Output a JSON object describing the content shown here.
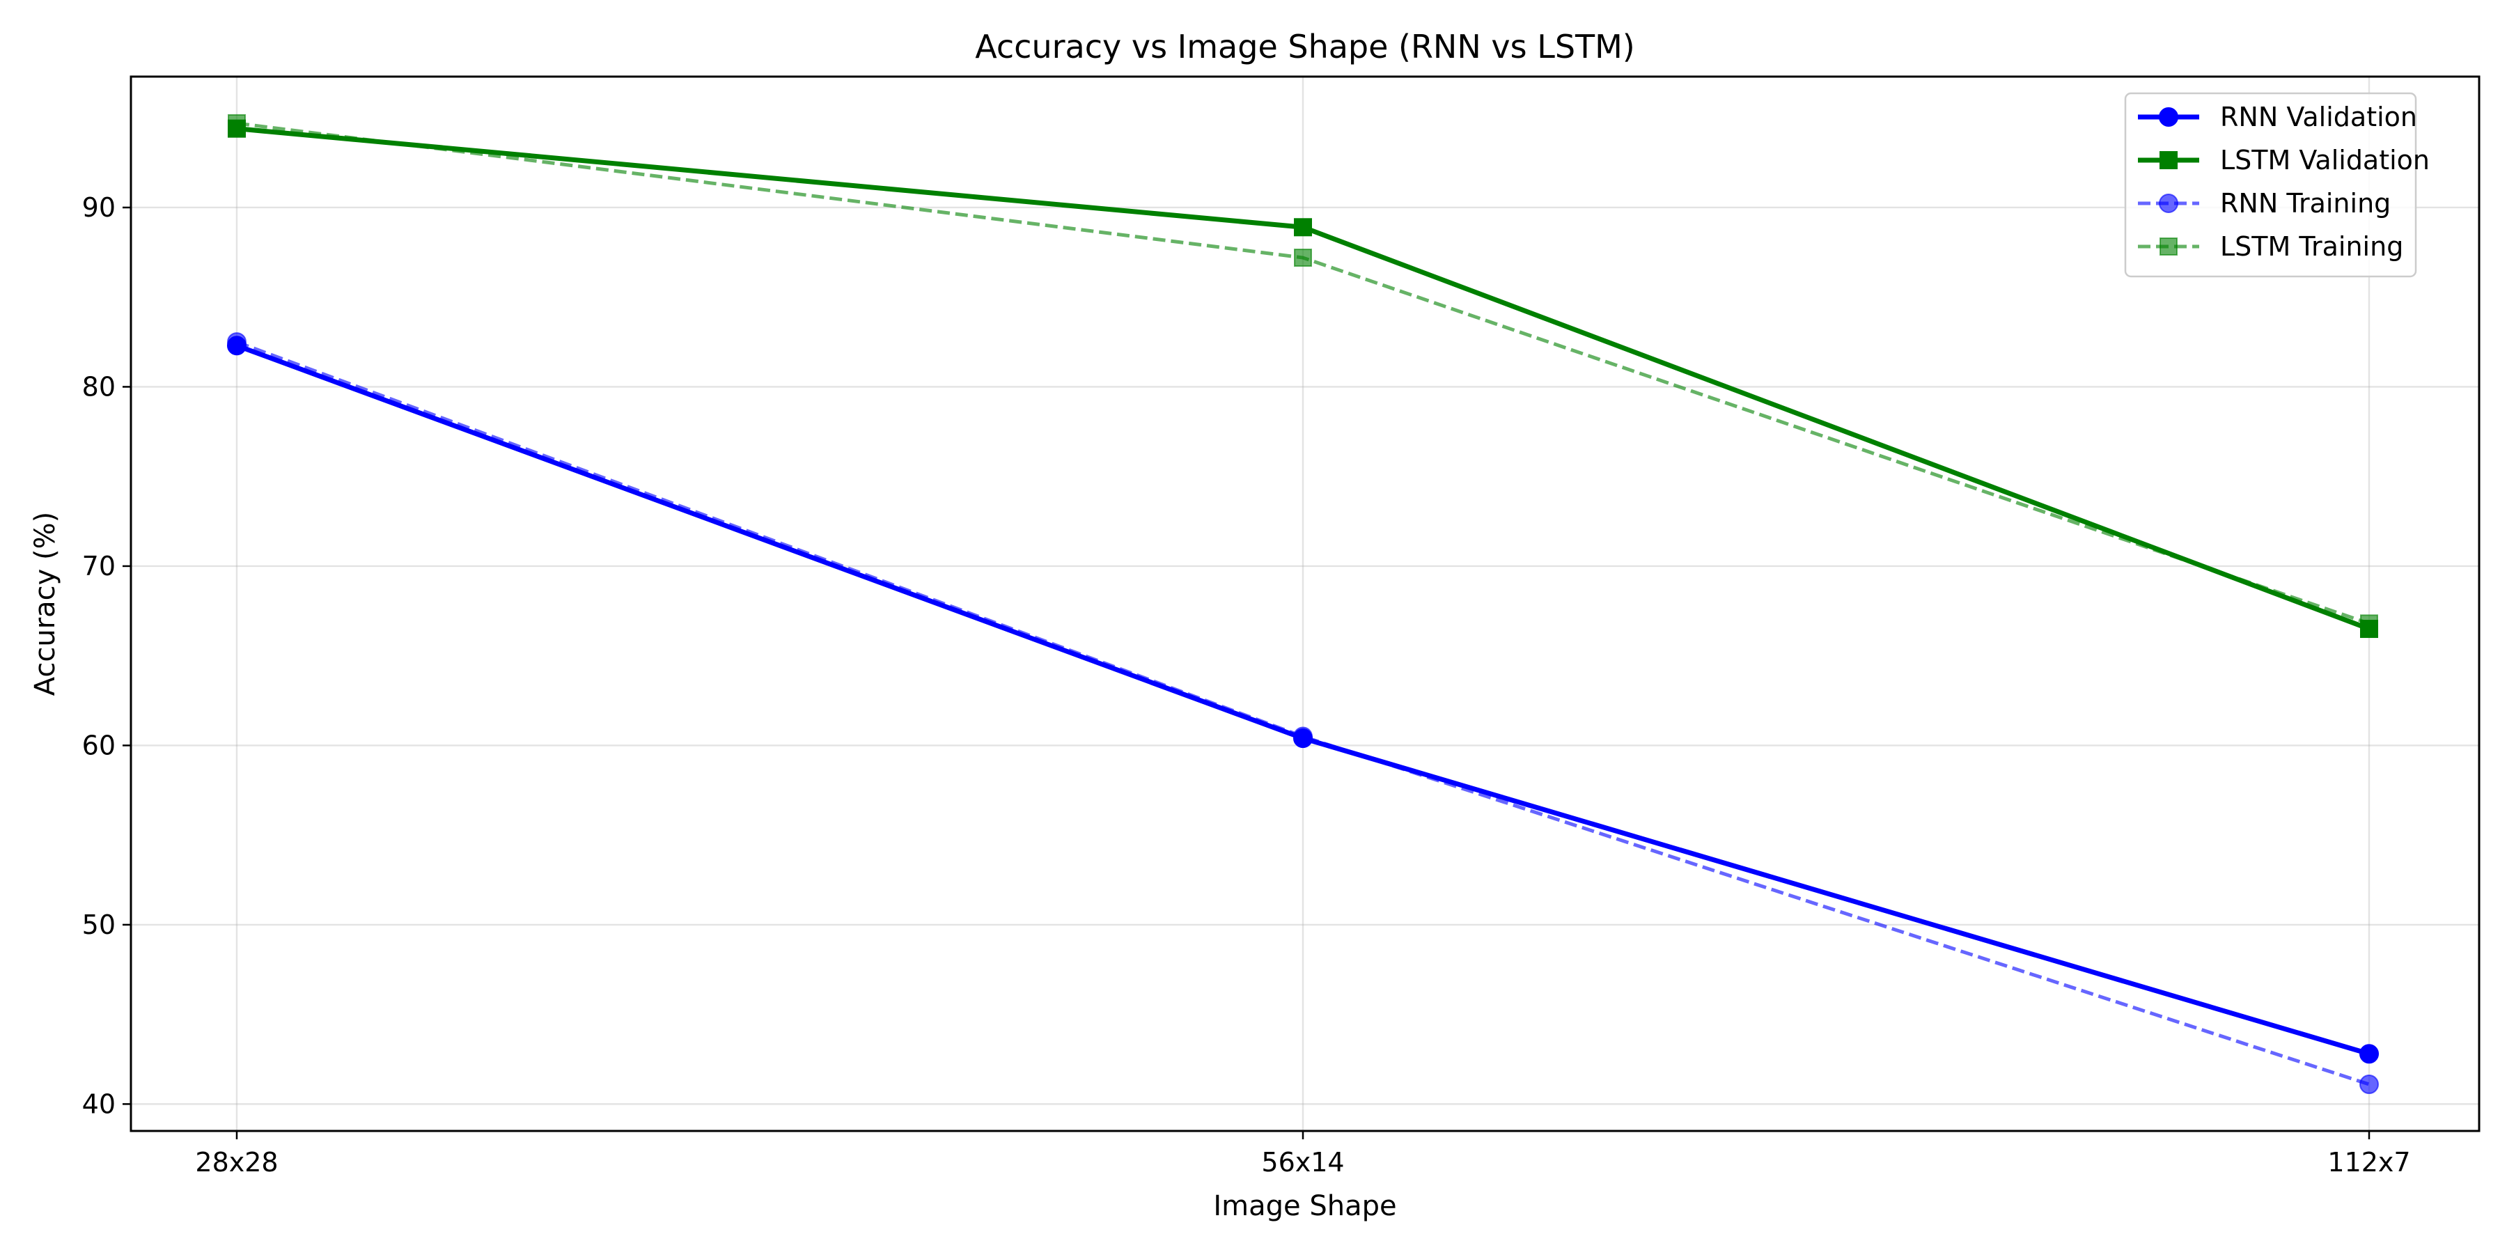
{
  "chart_data": {
    "type": "line",
    "title": "Accuracy vs Image Shape (RNN vs LSTM)",
    "xlabel": "Image Shape",
    "ylabel": "Accuracy (%)",
    "categories": [
      "28x28",
      "56x14",
      "112x7"
    ],
    "ylim": [
      38.5,
      97.3
    ],
    "yticks": [
      40,
      50,
      60,
      70,
      80,
      90
    ],
    "grid": true,
    "legend_position": "top-right",
    "series": [
      {
        "name": "RNN Validation",
        "values": [
          82.3,
          60.4,
          42.8
        ],
        "color": "#0000ff",
        "marker": "circle",
        "linestyle": "solid",
        "opacity": 1.0
      },
      {
        "name": "LSTM Validation",
        "values": [
          94.4,
          88.9,
          66.5
        ],
        "color": "#008000",
        "marker": "square",
        "linestyle": "solid",
        "opacity": 1.0
      },
      {
        "name": "RNN Training",
        "values": [
          82.5,
          60.5,
          41.1
        ],
        "color": "#0000ff",
        "marker": "circle",
        "linestyle": "dashed",
        "opacity": 0.6
      },
      {
        "name": "LSTM Training",
        "values": [
          94.7,
          87.2,
          66.8
        ],
        "color": "#008000",
        "marker": "square",
        "linestyle": "dashed",
        "opacity": 0.6
      }
    ]
  }
}
